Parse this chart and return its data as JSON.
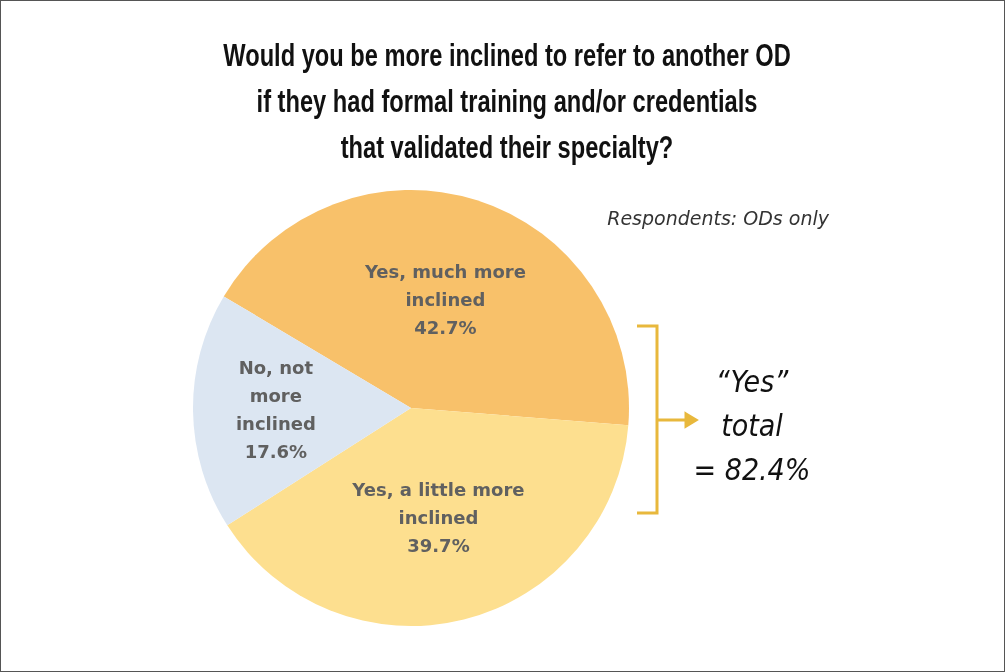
{
  "chart_data": {
    "type": "pie",
    "title": "Would you be more inclined to refer to another OD if they had formal training and/or credentials that validated their specialty?",
    "categories": [
      "Yes, much more inclined",
      "Yes, a little more inclined",
      "No, not more inclined"
    ],
    "values": [
      42.7,
      39.7,
      17.6
    ],
    "colors": [
      "#f8c16a",
      "#fddf8f",
      "#dce6f2"
    ],
    "value_labels": [
      "42.7%",
      "39.7%",
      "17.6%"
    ],
    "annotations": [
      "Respondents: ODs only",
      "“Yes” total\n= 82.4%"
    ]
  }
}
